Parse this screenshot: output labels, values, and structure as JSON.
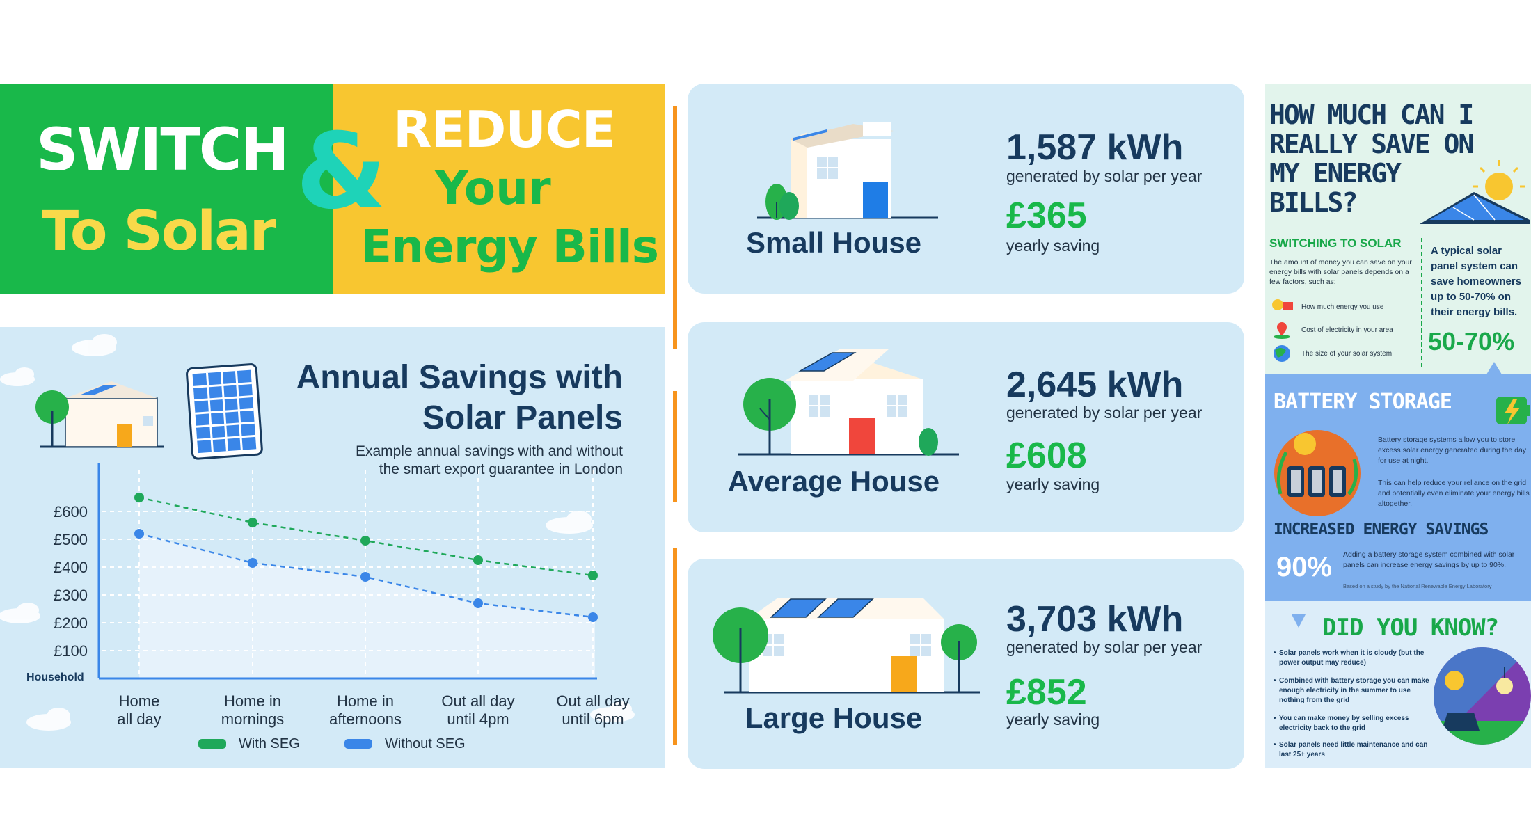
{
  "banner": {
    "switch": "SWITCH",
    "to_solar": "To Solar",
    "ampersand": "&",
    "reduce": "REDUCE",
    "your": "Your",
    "energy_bills": "Energy Bills"
  },
  "chart_panel": {
    "title_line1": "Annual Savings with",
    "title_line2": "Solar Panels",
    "subtitle_line1": "Example annual savings with and without",
    "subtitle_line2": "the smart export guarantee in London",
    "colors": {
      "with_seg": "#1fa85a",
      "without_seg": "#3a86e8",
      "axis": "#3a86e8"
    }
  },
  "chart_data": {
    "type": "line",
    "categories": [
      "Home all day",
      "Home in mornings",
      "Home in afternoons",
      "Out all day until 4pm",
      "Out all day until 6pm"
    ],
    "category_lines": [
      [
        "Home",
        "all day"
      ],
      [
        "Home in",
        "mornings"
      ],
      [
        "Home in",
        "afternoons"
      ],
      [
        "Out all day",
        "until 4pm"
      ],
      [
        "Out all day",
        "until 6pm"
      ]
    ],
    "series": [
      {
        "name": "With SEG",
        "values": [
          650,
          560,
          495,
          425,
          370
        ]
      },
      {
        "name": "Without SEG",
        "values": [
          520,
          415,
          365,
          270,
          220
        ]
      }
    ],
    "yticks": [
      "£600",
      "£500",
      "£400",
      "£300",
      "£200",
      "£100"
    ],
    "ytick_values": [
      600,
      500,
      400,
      300,
      200,
      100
    ],
    "xlabel": "Household",
    "ylabel": "",
    "ylim": [
      0,
      700
    ],
    "grid": true,
    "legend": "bottom"
  },
  "houses": [
    {
      "name": "Small House",
      "kwh": "1,587 kWh",
      "kwh_label": "generated by solar per year",
      "saving": "£365",
      "saving_label": "yearly saving"
    },
    {
      "name": "Average House",
      "kwh": "2,645 kWh",
      "kwh_label": "generated by solar per year",
      "saving": "£608",
      "saving_label": "yearly saving"
    },
    {
      "name": "Large House",
      "kwh": "3,703 kWh",
      "kwh_label": "generated by solar per year",
      "saving": "£852",
      "saving_label": "yearly saving"
    }
  ],
  "right": {
    "heading": "HOW MUCH CAN I REALLY SAVE ON MY ENERGY BILLS?",
    "switching_heading": "SWITCHING TO SOLAR",
    "switching_body": "The amount of money you can save on your energy bills with solar panels depends on a few factors, such as:",
    "factors": [
      "How much energy you use",
      "Cost of electricity in your area",
      "The size of your solar system"
    ],
    "typical": "A typical solar panel system can save homeowners up to 50-70% on their energy bills.",
    "pct": "50-70%",
    "battery_heading": "BATTERY STORAGE",
    "battery_body1": "Battery storage systems allow you to store excess solar energy generated during the day for use at night.",
    "battery_body2": "This can help reduce your reliance on the grid and potentially even eliminate your energy bills altogether.",
    "ies_heading": "INCREASED ENERGY SAVINGS",
    "ies_pct": "90%",
    "ies_body": "Adding a battery storage system combined with solar panels can increase energy savings by up to 90%.",
    "ies_note": "Based on a study by the National Renewable Energy Laboratory",
    "dyk_heading": "DID YOU KNOW?",
    "dyk_items": [
      "Solar panels work when it is cloudy (but the power output may reduce)",
      "Combined with battery storage you can make enough electricity in the summer to use nothing from the grid",
      "You can make money by selling excess electricity back to the grid",
      "Solar panels need little maintenance and can last 25+ years"
    ]
  }
}
